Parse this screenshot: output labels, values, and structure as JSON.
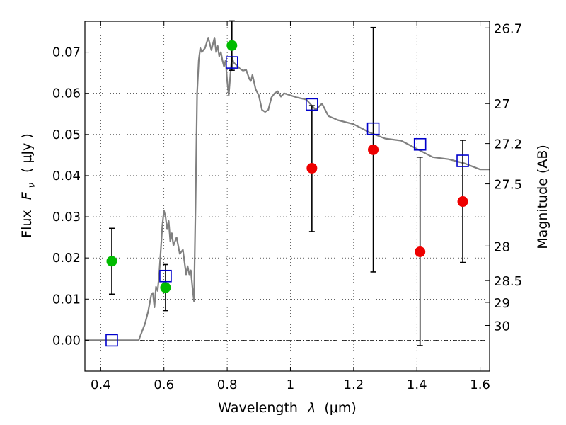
{
  "chart_data": {
    "type": "scatter",
    "xlabel_text": "Wavelength",
    "xlabel_sym": "λ",
    "xlabel_unit": "(μm)",
    "ylabel_text": "Flux",
    "ylabel_sym": "F",
    "ylabel_sub": "ν",
    "ylabel_unit": "( μJy )",
    "y2label": "Magnitude (AB)",
    "xlim": [
      0.35,
      1.63
    ],
    "ylim": [
      -0.0075,
      0.0775
    ],
    "grid": true,
    "x_ticks": [
      {
        "value": 0.4,
        "label": "0.4"
      },
      {
        "value": 0.6,
        "label": "0.6"
      },
      {
        "value": 0.8,
        "label": "0.8"
      },
      {
        "value": 1.0,
        "label": "1"
      },
      {
        "value": 1.2,
        "label": "1.2"
      },
      {
        "value": 1.4,
        "label": "1.4"
      },
      {
        "value": 1.6,
        "label": "1.6"
      }
    ],
    "y_ticks": [
      {
        "value": 0.0,
        "label": "0.00"
      },
      {
        "value": 0.01,
        "label": "0.01"
      },
      {
        "value": 0.02,
        "label": "0.02"
      },
      {
        "value": 0.03,
        "label": "0.03"
      },
      {
        "value": 0.04,
        "label": "0.04"
      },
      {
        "value": 0.05,
        "label": "0.05"
      },
      {
        "value": 0.06,
        "label": "0.06"
      },
      {
        "value": 0.07,
        "label": "0.07"
      }
    ],
    "mag_ticks": [
      {
        "value": 0.0759,
        "label": "26.7"
      },
      {
        "value": 0.0575,
        "label": "27"
      },
      {
        "value": 0.0478,
        "label": "27.2"
      },
      {
        "value": 0.038,
        "label": "27.5"
      },
      {
        "value": 0.0229,
        "label": "28"
      },
      {
        "value": 0.0145,
        "label": "28.5"
      },
      {
        "value": 0.0092,
        "label": "29"
      },
      {
        "value": 0.0036,
        "label": "30"
      }
    ],
    "model_spectrum": {
      "color": "#808080",
      "x": [
        0.35,
        0.52,
        0.54,
        0.55,
        0.56,
        0.565,
        0.57,
        0.575,
        0.58,
        0.585,
        0.59,
        0.595,
        0.6,
        0.605,
        0.61,
        0.615,
        0.62,
        0.625,
        0.63,
        0.64,
        0.65,
        0.66,
        0.67,
        0.675,
        0.68,
        0.685,
        0.69,
        0.695,
        0.7,
        0.705,
        0.71,
        0.715,
        0.72,
        0.73,
        0.74,
        0.75,
        0.76,
        0.765,
        0.77,
        0.775,
        0.78,
        0.785,
        0.79,
        0.795,
        0.8,
        0.805,
        0.81,
        0.815,
        0.82,
        0.83,
        0.84,
        0.85,
        0.86,
        0.87,
        0.875,
        0.88,
        0.89,
        0.9,
        0.91,
        0.92,
        0.93,
        0.94,
        0.95,
        0.96,
        0.97,
        0.98,
        1.0,
        1.02,
        1.05,
        1.08,
        1.1,
        1.12,
        1.15,
        1.2,
        1.25,
        1.3,
        1.35,
        1.4,
        1.45,
        1.5,
        1.55,
        1.6,
        1.63
      ],
      "y": [
        0.0,
        0.0,
        0.004,
        0.007,
        0.011,
        0.0115,
        0.008,
        0.013,
        0.012,
        0.016,
        0.022,
        0.028,
        0.0315,
        0.03,
        0.027,
        0.029,
        0.024,
        0.026,
        0.023,
        0.025,
        0.021,
        0.022,
        0.016,
        0.018,
        0.016,
        0.017,
        0.013,
        0.0095,
        0.033,
        0.06,
        0.068,
        0.071,
        0.07,
        0.071,
        0.0735,
        0.0705,
        0.0735,
        0.07,
        0.0715,
        0.069,
        0.07,
        0.068,
        0.0665,
        0.068,
        0.063,
        0.0595,
        0.0645,
        0.069,
        0.0675,
        0.0668,
        0.066,
        0.0655,
        0.0657,
        0.0635,
        0.063,
        0.0645,
        0.061,
        0.0595,
        0.056,
        0.0555,
        0.056,
        0.059,
        0.06,
        0.0605,
        0.0592,
        0.06,
        0.0595,
        0.059,
        0.0585,
        0.056,
        0.0575,
        0.0545,
        0.0535,
        0.0525,
        0.0505,
        0.049,
        0.0485,
        0.0465,
        0.0445,
        0.044,
        0.043,
        0.0415,
        0.0415
      ]
    },
    "series": [
      {
        "name": "",
        "marker": "circle",
        "color": "#00bb00",
        "points": [
          {
            "x": 0.435,
            "y": 0.0192,
            "lo": 0.0112,
            "hi": 0.0272
          },
          {
            "x": 0.605,
            "y": 0.0128,
            "lo": 0.0072,
            "hi": 0.0184
          },
          {
            "x": 0.815,
            "y": 0.0716,
            "lo": 0.0656,
            "hi": 0.0776
          }
        ]
      },
      {
        "name": "",
        "marker": "circle",
        "color": "#ee0000",
        "points": [
          {
            "x": 1.068,
            "y": 0.0418,
            "lo": 0.0264,
            "hi": 0.057
          },
          {
            "x": 1.262,
            "y": 0.0463,
            "lo": 0.0166,
            "hi": 0.076
          },
          {
            "x": 1.41,
            "y": 0.0215,
            "lo": -0.0013,
            "hi": 0.0445
          },
          {
            "x": 1.545,
            "y": 0.0337,
            "lo": 0.0189,
            "hi": 0.0486
          }
        ]
      },
      {
        "name": "",
        "marker": "square",
        "color": "#0000cc",
        "points": [
          {
            "x": 0.435,
            "y": 0.0
          },
          {
            "x": 0.605,
            "y": 0.0156
          },
          {
            "x": 0.815,
            "y": 0.0675
          },
          {
            "x": 1.068,
            "y": 0.0573
          },
          {
            "x": 1.262,
            "y": 0.0514
          },
          {
            "x": 1.41,
            "y": 0.0476
          },
          {
            "x": 1.545,
            "y": 0.0436
          }
        ]
      }
    ]
  }
}
